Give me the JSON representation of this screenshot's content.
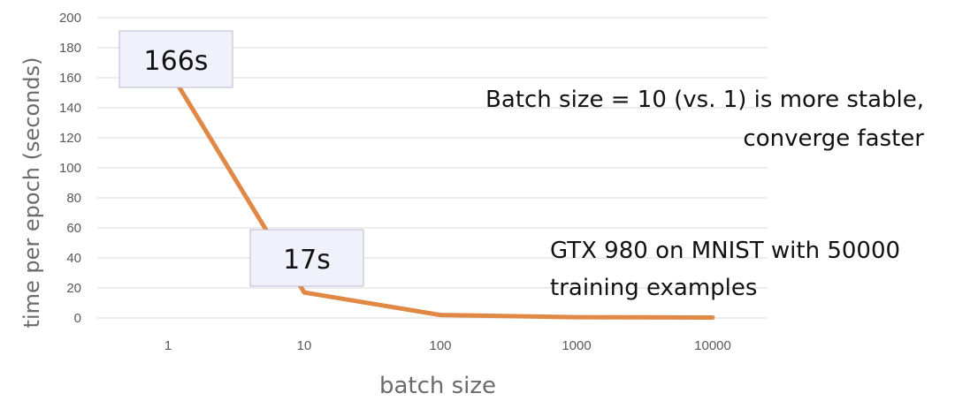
{
  "chart_data": {
    "type": "line",
    "categories": [
      "1",
      "10",
      "100",
      "1000",
      "10000"
    ],
    "series": [
      {
        "values": [
          166,
          17,
          2,
          0.5,
          0.3
        ],
        "color": "#e08844"
      }
    ],
    "xlabel": "batch size",
    "ylabel": "time per epoch (seconds)",
    "ylim": [
      0,
      200
    ],
    "yticks": [
      0,
      20,
      40,
      60,
      80,
      100,
      120,
      140,
      160,
      180,
      200
    ],
    "grid": true,
    "legend": "none",
    "callouts": [
      {
        "label": "166s",
        "category": "1",
        "value": 166
      },
      {
        "label": "17s",
        "category": "10",
        "value": 17
      }
    ],
    "annotations": [
      "Batch size = 10 (vs. 1) is more stable,",
      "converge faster",
      "GTX 980 on MNIST with 50000",
      "training examples"
    ]
  }
}
